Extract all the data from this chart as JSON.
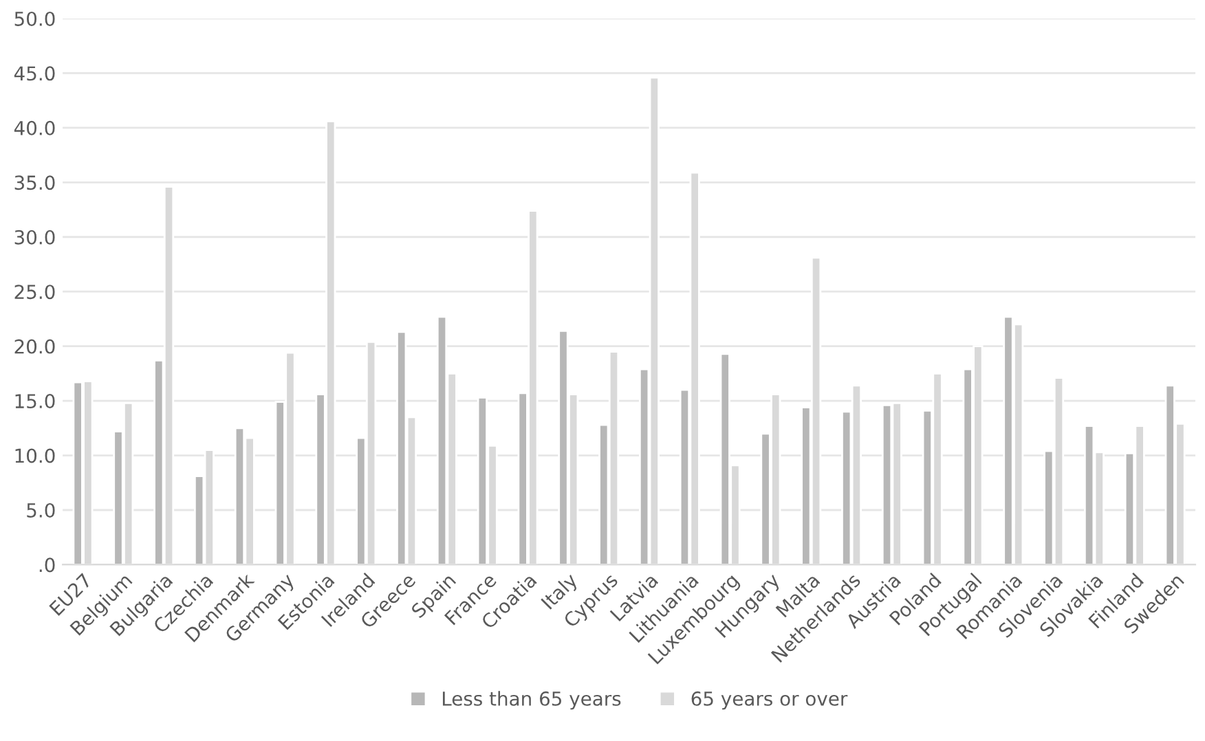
{
  "chart_data": {
    "type": "bar",
    "categories": [
      "EU27",
      "Belgium",
      "Bulgaria",
      "Czechia",
      "Denmark",
      "Germany",
      "Estonia",
      "Ireland",
      "Greece",
      "Spain",
      "France",
      "Croatia",
      "Italy",
      "Cyprus",
      "Latvia",
      "Lithuania",
      "Luxembourg",
      "Hungary",
      "Malta",
      "Netherlands",
      "Austria",
      "Poland",
      "Portugal",
      "Romania",
      "Slovenia",
      "Slovakia",
      "Finland",
      "Sweden"
    ],
    "series": [
      {
        "name": "Less than 65 years",
        "color": "#b7b7b7",
        "values": [
          16.7,
          12.2,
          18.7,
          8.1,
          12.5,
          14.9,
          15.6,
          11.6,
          21.3,
          22.7,
          15.3,
          15.7,
          21.4,
          12.8,
          17.9,
          16.0,
          19.3,
          12.0,
          14.4,
          14.0,
          14.6,
          14.1,
          17.9,
          22.7,
          10.4,
          12.7,
          10.2,
          16.4
        ]
      },
      {
        "name": "65 years or over",
        "color": "#d9d9d9",
        "values": [
          16.8,
          14.8,
          34.6,
          10.5,
          11.6,
          19.4,
          40.6,
          20.4,
          13.5,
          17.5,
          10.9,
          32.4,
          15.6,
          19.5,
          44.6,
          35.9,
          9.1,
          15.6,
          28.1,
          16.4,
          14.8,
          17.5,
          20.0,
          22.0,
          17.1,
          10.3,
          12.7,
          12.9
        ]
      }
    ],
    "ylim": [
      0,
      50
    ],
    "yticks": [
      {
        "value": 0,
        "label": ".0"
      },
      {
        "value": 5,
        "label": "5.0"
      },
      {
        "value": 10,
        "label": "10.0"
      },
      {
        "value": 15,
        "label": "15.0"
      },
      {
        "value": 20,
        "label": "20.0"
      },
      {
        "value": 25,
        "label": "25.0"
      },
      {
        "value": 30,
        "label": "30.0"
      },
      {
        "value": 35,
        "label": "35.0"
      },
      {
        "value": 40,
        "label": "40.0"
      },
      {
        "value": 45,
        "label": "45.0"
      },
      {
        "value": 50,
        "label": "50.0"
      }
    ],
    "grid": "y",
    "legend": "bottom"
  }
}
